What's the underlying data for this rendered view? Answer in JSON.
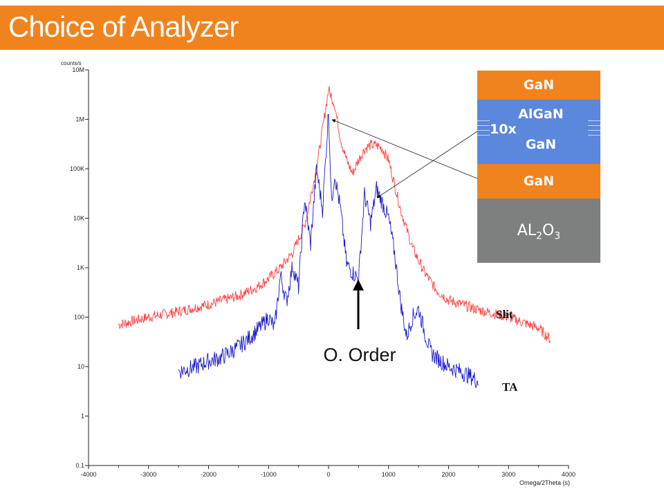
{
  "slide": {
    "title": "Choice of Analyzer"
  },
  "colors": {
    "title_bar": "#f0831e",
    "gan_layer": "#f0831e",
    "superlattice_layer": "#5b87dd",
    "substrate_layer": "#7e8080",
    "slit_curve": "#ff3b3b",
    "ta_curve": "#1a1acc"
  },
  "layer_stack": {
    "top": "GaN",
    "superlattice_repeat": "10x",
    "superlattice_a": "AlGaN",
    "superlattice_b": "GaN",
    "buffer": "GaN",
    "substrate_main": "AL",
    "substrate_sub1": "2",
    "substrate_mid": "O",
    "substrate_sub2": "3"
  },
  "annotations": {
    "zero_order": "O. Order",
    "slit_label": "Slit",
    "ta_label": "TA"
  },
  "chart_data": {
    "type": "line",
    "title": "",
    "xlabel": "Omega/2Theta (s)",
    "ylabel": "counts/s",
    "xlim": [
      -4000,
      4000
    ],
    "ylim": [
      0.1,
      10000000
    ],
    "yscale": "log",
    "x_ticks": [
      "-4000",
      "-3000",
      "-2000",
      "-1000",
      "0",
      "1000",
      "2000",
      "3000",
      "4000"
    ],
    "y_ticks": [
      "0.1",
      "1",
      "10",
      "100",
      "1K",
      "10K",
      "100K",
      "1M",
      "10M"
    ],
    "grid": false,
    "series": [
      {
        "name": "Slit",
        "x": [
          -3500,
          -3000,
          -2500,
          -2000,
          -1500,
          -1200,
          -1000,
          -800,
          -600,
          -400,
          -200,
          0,
          100,
          200,
          300,
          400,
          500,
          600,
          700,
          800,
          900,
          1000,
          1200,
          1400,
          1600,
          1800,
          2000,
          2500,
          3000,
          3500,
          3700
        ],
        "y": [
          70,
          100,
          130,
          180,
          270,
          400,
          600,
          1000,
          2000,
          7000,
          100000,
          4000000,
          2000000,
          400000,
          150000,
          80000,
          150000,
          250000,
          300000,
          300000,
          250000,
          150000,
          15000,
          2500,
          800,
          350,
          220,
          140,
          100,
          60,
          35
        ]
      },
      {
        "name": "TA",
        "x": [
          -2500,
          -2200,
          -2000,
          -1800,
          -1500,
          -1300,
          -1100,
          -1000,
          -900,
          -800,
          -700,
          -600,
          -500,
          -400,
          -300,
          -200,
          -100,
          0,
          50,
          100,
          200,
          300,
          400,
          500,
          600,
          700,
          800,
          900,
          1000,
          1100,
          1200,
          1300,
          1400,
          1500,
          1600,
          1700,
          1800,
          2000,
          2200,
          2400,
          2500
        ],
        "y": [
          8,
          10,
          13,
          15,
          25,
          40,
          70,
          100,
          60,
          700,
          200,
          1100,
          400,
          25000,
          3000,
          100000,
          15000,
          1500000,
          20000,
          80000,
          15000,
          1200,
          800,
          600,
          30000,
          8000,
          40000,
          20000,
          10000,
          2000,
          200,
          40,
          100,
          150,
          50,
          20,
          15,
          10,
          8,
          6,
          5
        ]
      }
    ]
  }
}
